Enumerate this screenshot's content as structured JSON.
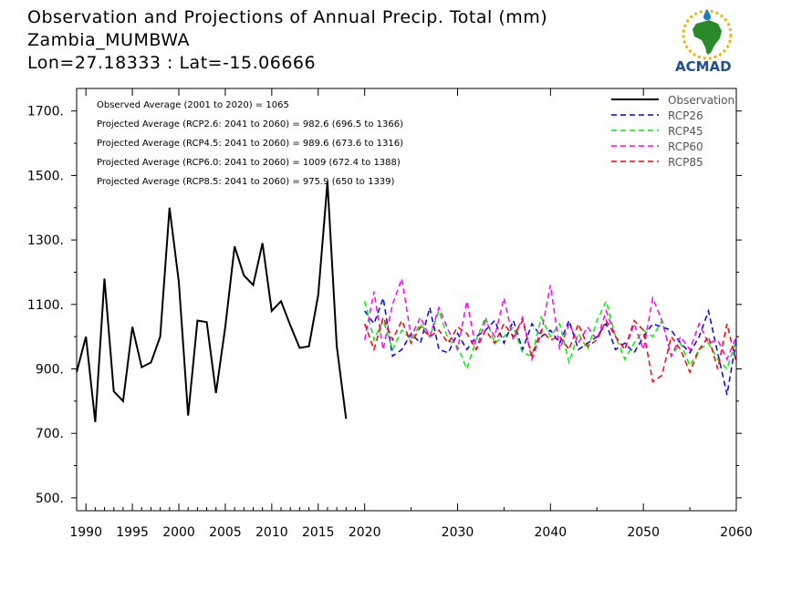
{
  "header": {
    "title_line1": "Observation and Projections of Annual Precip. Total (mm)",
    "title_line2": "Zambia_MUMBWA",
    "title_line3": "Lon=27.18333 : Lat=-15.06666"
  },
  "logo": {
    "text": "ACMAD"
  },
  "colors": {
    "Observation": "#000000",
    "RCP26": "#0000ff",
    "RCP45": "#00ee00",
    "RCP60": "#ff00ff",
    "RCP85": "#ff0000"
  },
  "chart_data": {
    "type": "line",
    "xlim": [
      1989,
      2060
    ],
    "ylim": [
      460,
      1770
    ],
    "x_ticks": [
      1990,
      1995,
      2000,
      2005,
      2010,
      2015,
      2020,
      2030,
      2040,
      2050,
      2060
    ],
    "y_ticks": [
      500,
      700,
      900,
      1100,
      1300,
      1500,
      1700
    ],
    "y_tick_labels": [
      "500.",
      "700.",
      "900.",
      "1100.",
      "1300.",
      "1500.",
      "1700."
    ],
    "legend_position": "top-right",
    "annotations": [
      "Observed Average (2001 to 2020) = 1065",
      "Projected Average (RCP2.6: 2041 to 2060) = 982.6 (696.5 to 1366)",
      "Projected Average (RCP4.5: 2041 to 2060) = 989.6 (673.6 to 1316)",
      "Projected Average (RCP6.0: 2041 to 2060) = 1009 (672.4 to 1388)",
      "Projected Average (RCP8.5: 2041 to 2060) = 975.9 (650 to 1339)"
    ],
    "series": [
      {
        "name": "Observation",
        "style": "solid",
        "x": [
          1989,
          1990,
          1991,
          1992,
          1993,
          1994,
          1995,
          1996,
          1997,
          1998,
          1999,
          2000,
          2001,
          2002,
          2003,
          2004,
          2005,
          2006,
          2007,
          2008,
          2009,
          2010,
          2011,
          2012,
          2013,
          2014,
          2015,
          2016,
          2017,
          2018,
          2019,
          2020
        ],
        "values": [
          890,
          1000,
          735,
          1180,
          830,
          800,
          1030,
          905,
          920,
          1000,
          1400,
          1170,
          755,
          1050,
          1045,
          825,
          1030,
          1280,
          1190,
          1160,
          1290,
          1080,
          1110,
          1035,
          965,
          970,
          1130,
          1480,
          970,
          745,
          null,
          null
        ]
      },
      {
        "name": "RCP26",
        "style": "dashed",
        "x": [
          2020,
          2021,
          2022,
          2023,
          2024,
          2025,
          2026,
          2027,
          2028,
          2029,
          2030,
          2031,
          2032,
          2033,
          2034,
          2035,
          2036,
          2037,
          2038,
          2039,
          2040,
          2041,
          2042,
          2043,
          2044,
          2045,
          2046,
          2047,
          2048,
          2049,
          2050,
          2051,
          2052,
          2053,
          2054,
          2055,
          2056,
          2057,
          2058,
          2059,
          2060
        ],
        "values": [
          1080,
          1040,
          1120,
          940,
          960,
          1010,
          980,
          1090,
          960,
          950,
          1010,
          960,
          1000,
          1020,
          1050,
          980,
          1050,
          960,
          1040,
          1000,
          1020,
          980,
          1050,
          960,
          980,
          1000,
          1040,
          960,
          980,
          950,
          1000,
          1040,
          1030,
          1020,
          980,
          950,
          1000,
          1080,
          950,
          820,
          990
        ]
      },
      {
        "name": "RCP45",
        "style": "dashed",
        "x": [
          2020,
          2021,
          2022,
          2023,
          2024,
          2025,
          2026,
          2027,
          2028,
          2029,
          2030,
          2031,
          2032,
          2033,
          2034,
          2035,
          2036,
          2037,
          2038,
          2039,
          2040,
          2041,
          2042,
          2043,
          2044,
          2045,
          2046,
          2047,
          2048,
          2049,
          2050,
          2051,
          2052,
          2053,
          2054,
          2055,
          2056,
          2057,
          2058,
          2059,
          2060
        ],
        "values": [
          1110,
          990,
          1050,
          960,
          1020,
          990,
          1040,
          1000,
          1080,
          990,
          970,
          900,
          990,
          1060,
          980,
          1000,
          1030,
          950,
          940,
          1060,
          1000,
          1040,
          920,
          1010,
          960,
          1050,
          1110,
          1000,
          930,
          980,
          1020,
          1000,
          1050,
          940,
          980,
          910,
          960,
          980,
          930,
          900,
          990
        ]
      },
      {
        "name": "RCP60",
        "style": "dashed",
        "x": [
          2020,
          2021,
          2022,
          2023,
          2024,
          2025,
          2026,
          2027,
          2028,
          2029,
          2030,
          2031,
          2032,
          2033,
          2034,
          2035,
          2036,
          2037,
          2038,
          2039,
          2040,
          2041,
          2042,
          2043,
          2044,
          2045,
          2046,
          2047,
          2048,
          2049,
          2050,
          2051,
          2052,
          2053,
          2054,
          2055,
          2056,
          2057,
          2058,
          2059,
          2060
        ],
        "values": [
          990,
          1140,
          960,
          1100,
          1180,
          1000,
          1060,
          1000,
          1090,
          1020,
          960,
          1110,
          960,
          1050,
          1000,
          1120,
          990,
          1060,
          930,
          1010,
          1160,
          960,
          1040,
          980,
          1030,
          990,
          1080,
          1000,
          960,
          1040,
          960,
          1120,
          1050,
          940,
          1000,
          960,
          1040,
          980,
          990,
          930,
          1000
        ]
      },
      {
        "name": "RCP85",
        "style": "dashed",
        "x": [
          2020,
          2021,
          2022,
          2023,
          2024,
          2025,
          2026,
          2027,
          2028,
          2029,
          2030,
          2031,
          2032,
          2033,
          2034,
          2035,
          2036,
          2037,
          2038,
          2039,
          2040,
          2041,
          2042,
          2043,
          2044,
          2045,
          2046,
          2047,
          2048,
          2049,
          2050,
          2051,
          2052,
          2053,
          2054,
          2055,
          2056,
          2057,
          2058,
          2059,
          2060
        ],
        "values": [
          1040,
          960,
          1060,
          990,
          1050,
          980,
          1030,
          1000,
          1020,
          980,
          1030,
          1010,
          960,
          1020,
          980,
          1040,
          1000,
          1050,
          940,
          1020,
          990,
          1000,
          960,
          1040,
          970,
          990,
          1050,
          1000,
          960,
          1050,
          1020,
          860,
          880,
          1000,
          960,
          890,
          960,
          1000,
          900,
          1040,
          920
        ]
      }
    ]
  }
}
